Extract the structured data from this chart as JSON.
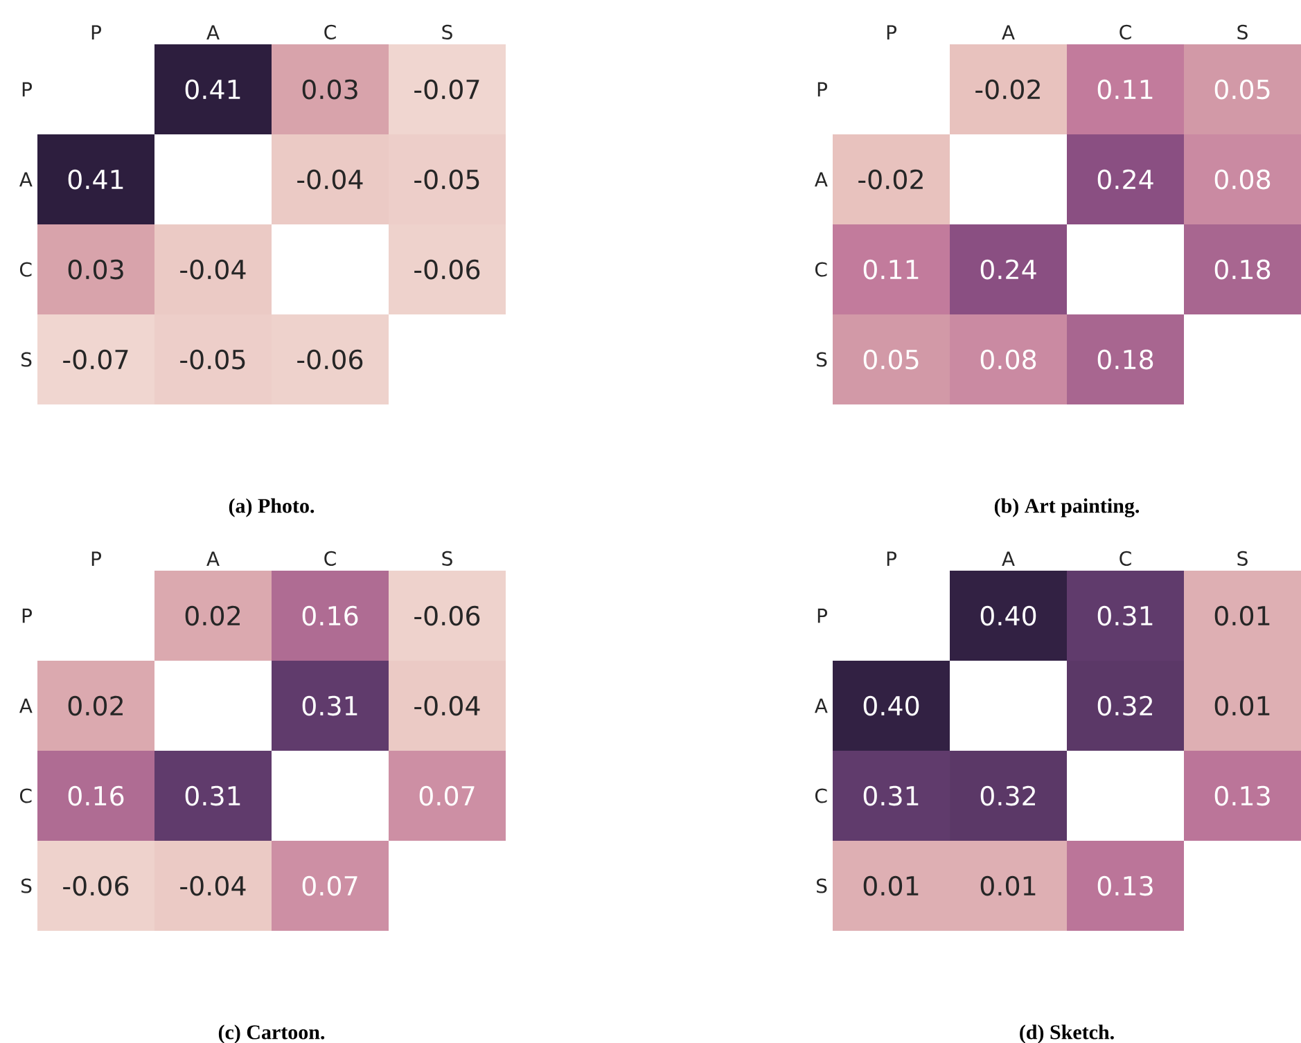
{
  "chart_data": [
    {
      "type": "heatmap",
      "title": "(a) Photo.",
      "categories": [
        "P",
        "A",
        "C",
        "S"
      ],
      "y_categories": [
        "P",
        "A",
        "C",
        "S"
      ],
      "cells": [
        [
          null,
          0.41,
          0.03,
          -0.07
        ],
        [
          0.41,
          null,
          -0.04,
          -0.05
        ],
        [
          0.03,
          -0.04,
          null,
          -0.06
        ],
        [
          -0.07,
          -0.05,
          -0.06,
          null
        ]
      ],
      "data_labels": true
    },
    {
      "type": "heatmap",
      "title": "(b) Art painting.",
      "categories": [
        "P",
        "A",
        "C",
        "S"
      ],
      "y_categories": [
        "P",
        "A",
        "C",
        "S"
      ],
      "cells": [
        [
          null,
          -0.02,
          0.11,
          0.05
        ],
        [
          -0.02,
          null,
          0.24,
          0.08
        ],
        [
          0.11,
          0.24,
          null,
          0.18
        ],
        [
          0.05,
          0.08,
          0.18,
          null
        ]
      ],
      "data_labels": true
    },
    {
      "type": "heatmap",
      "title": "(c) Cartoon.",
      "categories": [
        "P",
        "A",
        "C",
        "S"
      ],
      "y_categories": [
        "P",
        "A",
        "C",
        "S"
      ],
      "cells": [
        [
          null,
          0.02,
          0.16,
          -0.06
        ],
        [
          0.02,
          null,
          0.31,
          -0.04
        ],
        [
          0.16,
          0.31,
          null,
          0.07
        ],
        [
          -0.06,
          -0.04,
          0.07,
          null
        ]
      ],
      "data_labels": true
    },
    {
      "type": "heatmap",
      "title": "(d) Sketch.",
      "categories": [
        "P",
        "A",
        "C",
        "S"
      ],
      "y_categories": [
        "P",
        "A",
        "C",
        "S"
      ],
      "cells": [
        [
          null,
          0.4,
          0.31,
          0.01
        ],
        [
          0.4,
          null,
          0.32,
          0.01
        ],
        [
          0.31,
          0.32,
          null,
          0.13
        ],
        [
          0.01,
          0.01,
          0.13,
          null
        ]
      ],
      "cell_labels": [
        [
          null,
          "0.40",
          "0.31",
          "0.01"
        ],
        [
          "0.40",
          null,
          "0.32",
          "0.01"
        ],
        [
          "0.31",
          "0.32",
          null,
          "0.13"
        ],
        [
          "0.01",
          "0.01",
          "0.13",
          null
        ]
      ],
      "data_labels": true
    }
  ]
}
